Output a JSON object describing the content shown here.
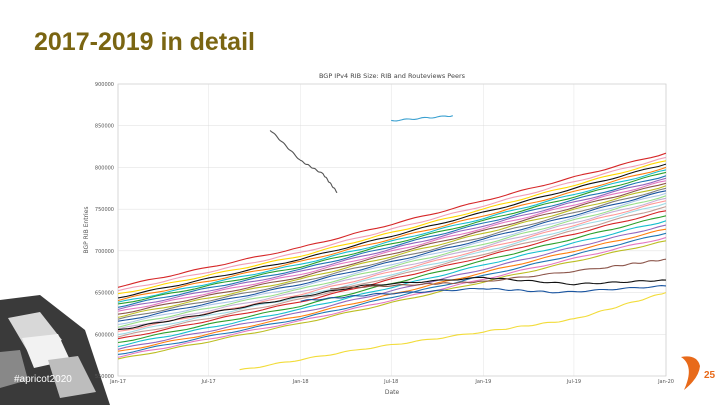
{
  "slide": {
    "title": "2017-2019 in detail",
    "hashtag": "#apricot2020",
    "logo_text": "25"
  },
  "colors": {
    "title": "#7a6512",
    "accent": "#e86a1a",
    "grid": "#dcdcdc",
    "corner_dark": "#3a3a3a"
  },
  "chart_data": {
    "type": "line",
    "title": "BGP IPv4 RIB Size: RIB and Routeviews Peers",
    "xlabel": "Date",
    "ylabel": "BGP RIB Entries",
    "xlim": [
      "2017-01-01",
      "2020-01-01"
    ],
    "ylim": [
      550000,
      900000
    ],
    "x_ticks": [
      "2017-01-01",
      "2017-07-01",
      "2018-01-01",
      "2018-07-01",
      "2019-01-01",
      "2019-07-01",
      "2020-01-01"
    ],
    "x_tick_labels": [
      "Jan-17",
      "Jul-17",
      "Jan-18",
      "Jul-18",
      "Jan-19",
      "Jul-19",
      "Jan-20"
    ],
    "y_ticks": [
      550000,
      600000,
      650000,
      700000,
      750000,
      800000,
      850000,
      900000
    ],
    "y_tick_labels": [
      "550000",
      "600000",
      "650000",
      "700000",
      "750000",
      "800000",
      "850000",
      "900000"
    ],
    "grid": true,
    "legend": "none",
    "series": [
      {
        "color": "#d62728",
        "points": [
          [
            "2017-01-01",
            657000
          ],
          [
            "2018-01-01",
            704000
          ],
          [
            "2019-01-01",
            760000
          ],
          [
            "2020-01-01",
            817000
          ]
        ]
      },
      {
        "color": "#f0a0b8",
        "points": [
          [
            "2017-01-01",
            652000
          ],
          [
            "2018-01-01",
            698000
          ],
          [
            "2019-01-01",
            754000
          ],
          [
            "2020-01-01",
            812000
          ]
        ]
      },
      {
        "color": "#ffd700",
        "points": [
          [
            "2017-01-01",
            648000
          ],
          [
            "2018-01-01",
            694000
          ],
          [
            "2019-01-01",
            750000
          ],
          [
            "2020-01-01",
            808000
          ]
        ]
      },
      {
        "color": "#111111",
        "points": [
          [
            "2017-01-01",
            644000
          ],
          [
            "2018-01-01",
            690000
          ],
          [
            "2019-01-01",
            746000
          ],
          [
            "2020-01-01",
            804000
          ]
        ]
      },
      {
        "color": "#ff7f0e",
        "points": [
          [
            "2017-01-01",
            641000
          ],
          [
            "2018-01-01",
            687000
          ],
          [
            "2019-01-01",
            742000
          ],
          [
            "2020-01-01",
            800000
          ]
        ]
      },
      {
        "color": "#17becf",
        "points": [
          [
            "2017-01-01",
            638000
          ],
          [
            "2018-01-01",
            684000
          ],
          [
            "2019-01-01",
            739000
          ],
          [
            "2020-01-01",
            797000
          ]
        ]
      },
      {
        "color": "#2ca02c",
        "points": [
          [
            "2017-01-01",
            636000
          ],
          [
            "2018-01-01",
            681000
          ],
          [
            "2019-01-01",
            736000
          ],
          [
            "2020-01-01",
            794000
          ]
        ]
      },
      {
        "color": "#1f77b4",
        "points": [
          [
            "2017-01-01",
            633000
          ],
          [
            "2018-01-01",
            678000
          ],
          [
            "2019-01-01",
            733000
          ],
          [
            "2020-01-01",
            790000
          ]
        ]
      },
      {
        "color": "#9467bd",
        "points": [
          [
            "2017-01-01",
            630000
          ],
          [
            "2018-01-01",
            675000
          ],
          [
            "2019-01-01",
            730000
          ],
          [
            "2020-01-01",
            787000
          ]
        ]
      },
      {
        "color": "#e377c2",
        "points": [
          [
            "2017-01-01",
            627000
          ],
          [
            "2018-01-01",
            672000
          ],
          [
            "2019-01-01",
            727000
          ],
          [
            "2020-01-01",
            784000
          ]
        ]
      },
      {
        "color": "#8c564b",
        "points": [
          [
            "2017-01-01",
            624000
          ],
          [
            "2018-01-01",
            669000
          ],
          [
            "2019-01-01",
            724000
          ],
          [
            "2020-01-01",
            781000
          ]
        ]
      },
      {
        "color": "#bcbd22",
        "points": [
          [
            "2017-01-01",
            621000
          ],
          [
            "2018-01-01",
            666000
          ],
          [
            "2019-01-01",
            721000
          ],
          [
            "2020-01-01",
            778000
          ]
        ]
      },
      {
        "color": "#7f7f7f",
        "points": [
          [
            "2017-01-01",
            618000
          ],
          [
            "2018-01-01",
            663000
          ],
          [
            "2019-01-01",
            717000
          ],
          [
            "2020-01-01",
            775000
          ]
        ]
      },
      {
        "color": "#1a55a0",
        "points": [
          [
            "2017-01-01",
            615000
          ],
          [
            "2018-01-01",
            660000
          ],
          [
            "2019-01-01",
            714000
          ],
          [
            "2020-01-01",
            772000
          ]
        ]
      },
      {
        "color": "#aec7e8",
        "points": [
          [
            "2017-01-01",
            612000
          ],
          [
            "2018-01-01",
            657000
          ],
          [
            "2019-01-01",
            711000
          ],
          [
            "2020-01-01",
            769000
          ]
        ]
      },
      {
        "color": "#98df8a",
        "points": [
          [
            "2017-01-01",
            609000
          ],
          [
            "2018-01-01",
            654000
          ],
          [
            "2019-01-01",
            708000
          ],
          [
            "2020-01-01",
            766000
          ]
        ]
      },
      {
        "color": "#c5b0d5",
        "points": [
          [
            "2017-01-01",
            606000
          ],
          [
            "2018-01-01",
            651000
          ],
          [
            "2019-01-01",
            705000
          ],
          [
            "2020-01-01",
            763000
          ]
        ]
      },
      {
        "color": "#ff9896",
        "points": [
          [
            "2017-01-01",
            603000
          ],
          [
            "2018-01-01",
            648000
          ],
          [
            "2019-01-01",
            702000
          ],
          [
            "2020-01-01",
            760000
          ]
        ]
      },
      {
        "color": "#9edae5",
        "points": [
          [
            "2017-01-01",
            600000
          ],
          [
            "2018-01-01",
            645000
          ],
          [
            "2019-01-01",
            699000
          ],
          [
            "2020-01-01",
            757000
          ]
        ]
      },
      {
        "color": "#c49c94",
        "points": [
          [
            "2017-01-01",
            597000
          ],
          [
            "2018-01-01",
            642000
          ],
          [
            "2019-01-01",
            696000
          ],
          [
            "2020-01-01",
            753000
          ]
        ]
      },
      {
        "color": "#d62728",
        "points": [
          [
            "2017-01-01",
            594000
          ],
          [
            "2018-01-01",
            639000
          ],
          [
            "2019-01-01",
            693000
          ],
          [
            "2020-01-01",
            748000
          ]
        ]
      },
      {
        "color": "#2ca02c",
        "points": [
          [
            "2017-01-01",
            590000
          ],
          [
            "2018-01-01",
            634000
          ],
          [
            "2019-01-01",
            688000
          ],
          [
            "2020-01-01",
            742000
          ]
        ]
      },
      {
        "color": "#17becf",
        "points": [
          [
            "2017-01-01",
            586000
          ],
          [
            "2018-01-01",
            630000
          ],
          [
            "2019-01-01",
            683000
          ],
          [
            "2020-01-01",
            736000
          ]
        ]
      },
      {
        "color": "#9467bd",
        "points": [
          [
            "2017-01-01",
            582000
          ],
          [
            "2018-01-01",
            626000
          ],
          [
            "2019-01-01",
            678000
          ],
          [
            "2020-01-01",
            731000
          ]
        ]
      },
      {
        "color": "#ff7f0e",
        "points": [
          [
            "2017-01-01",
            579000
          ],
          [
            "2018-01-01",
            622000
          ],
          [
            "2019-01-01",
            674000
          ],
          [
            "2020-01-01",
            726000
          ]
        ]
      },
      {
        "color": "#1f77b4",
        "points": [
          [
            "2017-01-01",
            576000
          ],
          [
            "2018-01-01",
            619000
          ],
          [
            "2019-01-01",
            670000
          ],
          [
            "2020-01-01",
            721000
          ]
        ]
      },
      {
        "color": "#e377c2",
        "points": [
          [
            "2017-01-01",
            573000
          ],
          [
            "2018-01-01",
            616000
          ],
          [
            "2019-01-01",
            666000
          ],
          [
            "2020-01-01",
            716000
          ]
        ]
      },
      {
        "color": "#bcbd22",
        "points": [
          [
            "2017-01-01",
            570000
          ],
          [
            "2018-01-01",
            613000
          ],
          [
            "2019-01-01",
            663000
          ],
          [
            "2020-01-01",
            712000
          ]
        ]
      },
      {
        "color": "#111111",
        "points": [
          [
            "2017-01-01",
            605000
          ],
          [
            "2017-09-01",
            632000
          ],
          [
            "2018-05-01",
            658000
          ],
          [
            "2019-01-01",
            668000
          ],
          [
            "2019-07-01",
            660000
          ],
          [
            "2020-01-01",
            665000
          ]
        ]
      },
      {
        "color": "#8c564b",
        "points": [
          [
            "2018-03-01",
            655000
          ],
          [
            "2018-09-01",
            660000
          ],
          [
            "2019-01-01",
            663000
          ],
          [
            "2019-09-01",
            680000
          ],
          [
            "2020-01-01",
            690000
          ]
        ]
      },
      {
        "color": "#1a55a0",
        "points": [
          [
            "2018-01-01",
            640000
          ],
          [
            "2018-06-01",
            648000
          ],
          [
            "2019-01-01",
            655000
          ],
          [
            "2019-06-01",
            650000
          ],
          [
            "2020-01-01",
            658000
          ]
        ]
      },
      {
        "color": "#f2dc3a",
        "points": [
          [
            "2017-09-01",
            557000
          ],
          [
            "2018-05-01",
            582000
          ],
          [
            "2019-01-01",
            603000
          ],
          [
            "2019-07-01",
            618000
          ],
          [
            "2020-01-01",
            650000
          ]
        ]
      },
      {
        "color": "#3aa0d0",
        "points": [
          [
            "2018-07-01",
            856000
          ],
          [
            "2018-11-01",
            862000
          ]
        ]
      },
      {
        "color": "#555555",
        "points": [
          [
            "2017-11-01",
            845000
          ],
          [
            "2018-01-01",
            808000
          ],
          [
            "2018-02-15",
            792000
          ],
          [
            "2018-03-15",
            770000
          ]
        ]
      }
    ]
  }
}
